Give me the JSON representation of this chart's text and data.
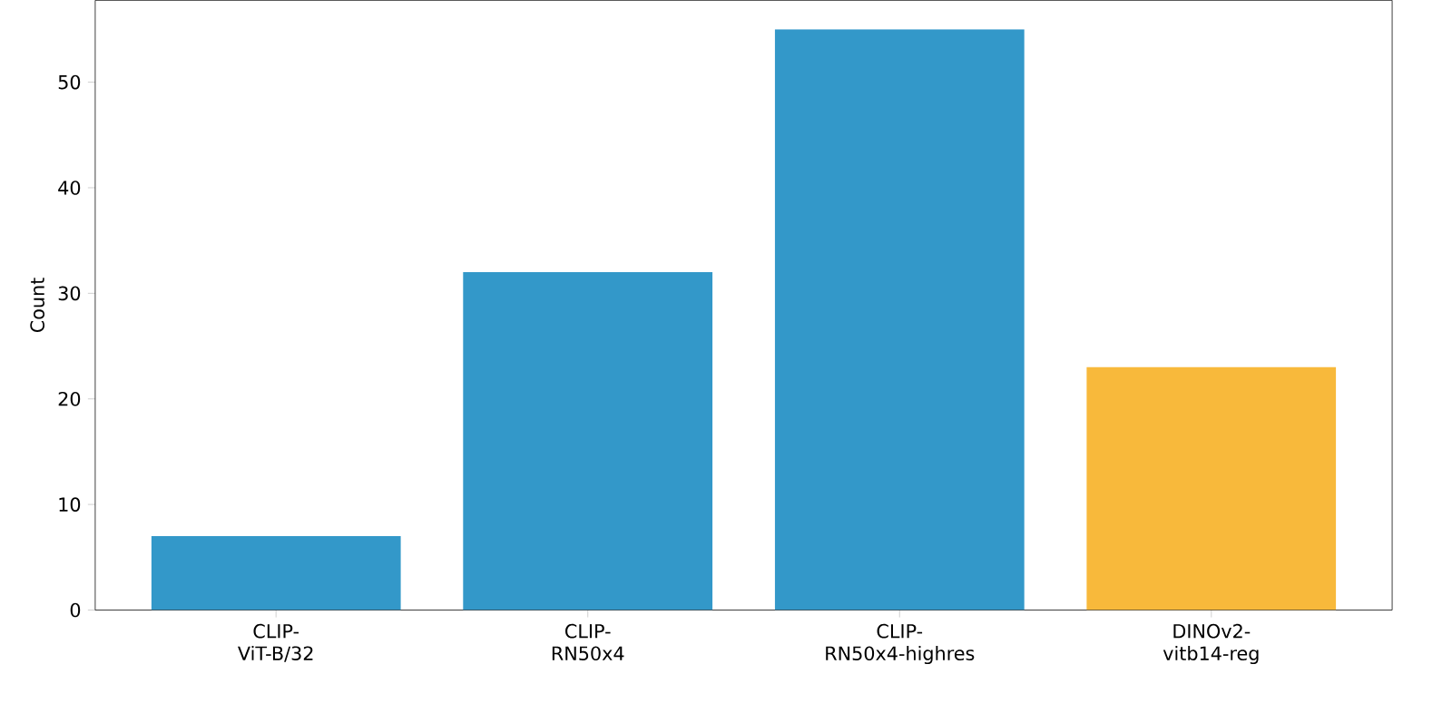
{
  "chart_data": {
    "type": "bar",
    "ylabel": "Count",
    "categories": [
      "CLIP-\nViT-B/32",
      "CLIP-\nRN50x4",
      "CLIP-\nRN50x4-highres",
      "DINOv2-\nvitb14-reg"
    ],
    "values": [
      7,
      32,
      55,
      23
    ],
    "colors": [
      "#3398c9",
      "#3398c9",
      "#3398c9",
      "#f8b93b"
    ],
    "ylim": [
      0,
      57.75
    ],
    "yticks": [
      0,
      10,
      20,
      30,
      40,
      50
    ]
  }
}
